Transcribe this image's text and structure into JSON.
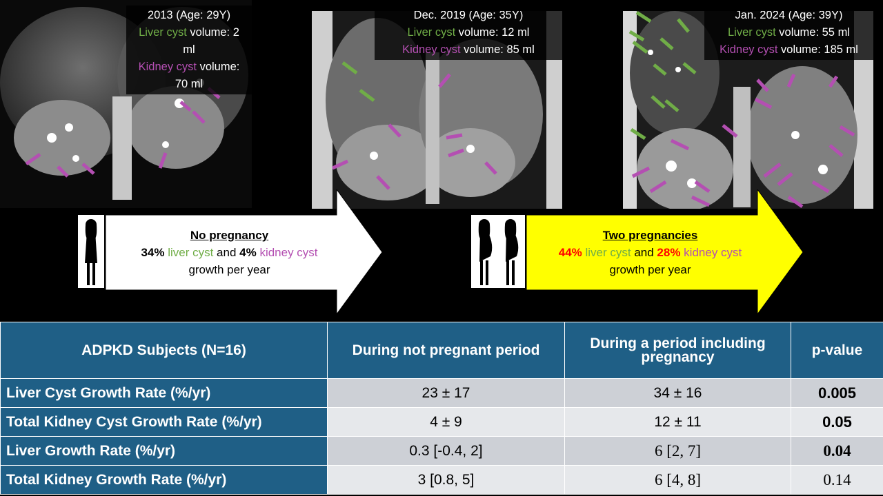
{
  "panels": [
    {
      "line1": "2013 (Age: 29Y)",
      "liver_label": "Liver cyst",
      "liver_rest": " volume: 2 ml",
      "kidney_label": "Kidney cyst",
      "kidney_rest": " volume: 70 ml"
    },
    {
      "line1": "Dec. 2019 (Age: 35Y)",
      "liver_label": "Liver cyst",
      "liver_rest": " volume: 12 ml",
      "kidney_label": "Kidney cyst",
      "kidney_rest": " volume: 85 ml"
    },
    {
      "line1": "Jan. 2024 (Age: 39Y)",
      "liver_label": "Liver cyst",
      "liver_rest": " volume: 55 ml",
      "kidney_label": "Kidney cyst",
      "kidney_rest": " volume: 185 ml"
    }
  ],
  "arrow1": {
    "heading": "No pregnancy",
    "pct_liver": "34%",
    "liver_cyst": " liver cyst",
    "and": " and ",
    "pct_kidney": "4%",
    "kidney_cyst": " kidney cyst",
    "line3": "growth per year",
    "fill": "#ffffff"
  },
  "arrow2": {
    "heading": "Two pregnancies",
    "pct_liver": "44%",
    "liver_cyst": " liver cyst",
    "and": " and ",
    "pct_kidney": "28%",
    "kidney_cyst": " kidney cyst",
    "line3": "growth per year",
    "fill": "#ffff00"
  },
  "colors": {
    "liver": "#70ad47",
    "kidney": "#b44fb2",
    "header": "#1f5f86"
  },
  "table": {
    "headers": [
      "ADPKD Subjects (N=16)",
      "During not pregnant period",
      "During a period including pregnancy",
      "p-value"
    ],
    "rows": [
      {
        "label": "Liver Cyst Growth Rate (%/yr)",
        "not_pregnant": "23 ± 17",
        "pregnancy": "34 ± 16",
        "p": "0.005"
      },
      {
        "label": "Total Kidney Cyst Growth Rate (%/yr)",
        "not_pregnant": "4 ± 9",
        "pregnancy": "12 ± 11",
        "p": "0.05"
      },
      {
        "label": "Liver Growth Rate (%/yr)",
        "not_pregnant": "0.3 [-0.4, 2]",
        "pregnancy": "6 [2, 7]",
        "p": "0.04"
      },
      {
        "label": "Total Kidney Growth Rate (%/yr)",
        "not_pregnant": "3 [0.8, 5]",
        "pregnancy": "6 [4, 8]",
        "p": "0.14"
      }
    ]
  }
}
